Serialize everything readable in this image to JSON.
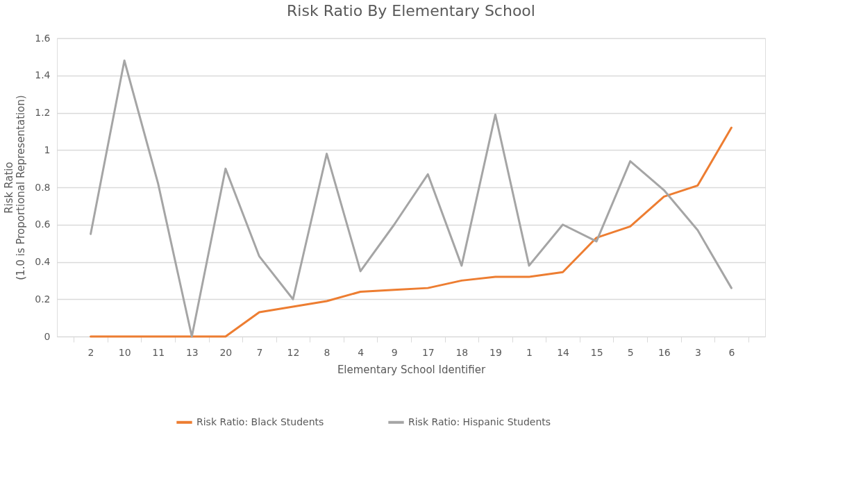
{
  "chart_data": {
    "type": "line",
    "title": "Risk Ratio By Elementary School",
    "xlabel": "Elementary School Identifier",
    "ylabel": "Risk Ratio\n(1.0 is Proportional Representation)",
    "categories": [
      "2",
      "10",
      "11",
      "13",
      "20",
      "7",
      "12",
      "8",
      "4",
      "9",
      "17",
      "18",
      "19",
      "1",
      "14",
      "15",
      "5",
      "16",
      "3",
      "6"
    ],
    "series": [
      {
        "name": "Risk Ratio: Black Students",
        "color": "#ed7d31",
        "values": [
          0,
          0,
          0,
          0,
          0,
          0.13,
          0.16,
          0.19,
          0.24,
          0.25,
          0.26,
          0.3,
          0.32,
          0.32,
          0.345,
          0.53,
          0.59,
          0.75,
          0.81,
          1.12
        ]
      },
      {
        "name": "Risk Ratio: Hispanic Students",
        "color": "#a5a5a5",
        "values": [
          0.55,
          1.48,
          0.82,
          0,
          0.9,
          0.43,
          0.2,
          0.98,
          0.35,
          0.6,
          0.87,
          0.38,
          1.19,
          0.38,
          0.6,
          0.51,
          0.94,
          0.785,
          0.57,
          0.26
        ]
      }
    ],
    "ylim": [
      0,
      1.6
    ],
    "yticks": [
      0,
      0.2,
      0.4,
      0.6,
      0.8,
      1,
      1.2,
      1.4,
      1.6
    ],
    "grid": "y",
    "legend": "bottom",
    "marker": "none",
    "line_style": "solid"
  }
}
